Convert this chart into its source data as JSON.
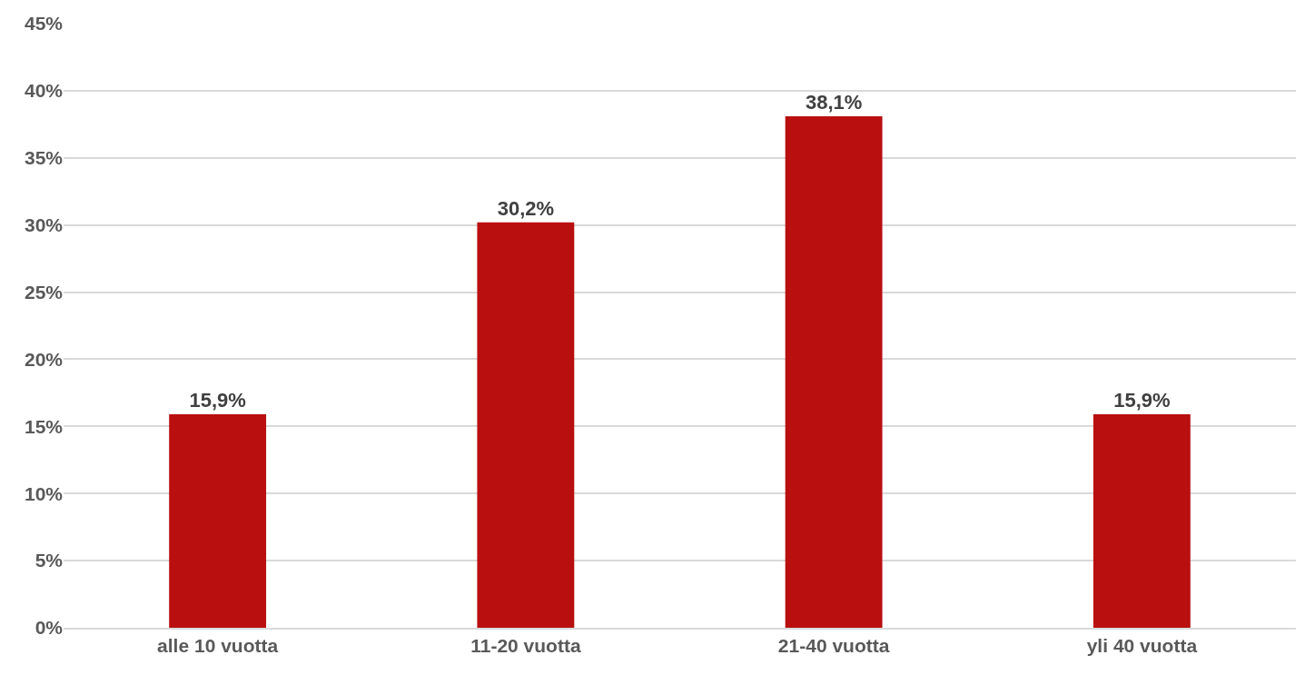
{
  "chart_data": {
    "type": "bar",
    "categories": [
      "alle 10 vuotta",
      "11-20 vuotta",
      "21-40 vuotta",
      "yli 40 vuotta"
    ],
    "values": [
      15.9,
      30.2,
      38.1,
      15.9
    ],
    "value_labels": [
      "15,9%",
      "30,2%",
      "38,1%",
      "15,9%"
    ],
    "color": "#b90f0f",
    "ylim": [
      0,
      45
    ],
    "yticks": [
      {
        "value": 0,
        "label": "0%"
      },
      {
        "value": 5,
        "label": "5%"
      },
      {
        "value": 10,
        "label": "10%"
      },
      {
        "value": 15,
        "label": "15%"
      },
      {
        "value": 20,
        "label": "20%"
      },
      {
        "value": 25,
        "label": "25%"
      },
      {
        "value": 30,
        "label": "30%"
      },
      {
        "value": 35,
        "label": "35%"
      },
      {
        "value": 40,
        "label": "40%"
      },
      {
        "value": 45,
        "label": "45%"
      }
    ],
    "grid": "y"
  }
}
